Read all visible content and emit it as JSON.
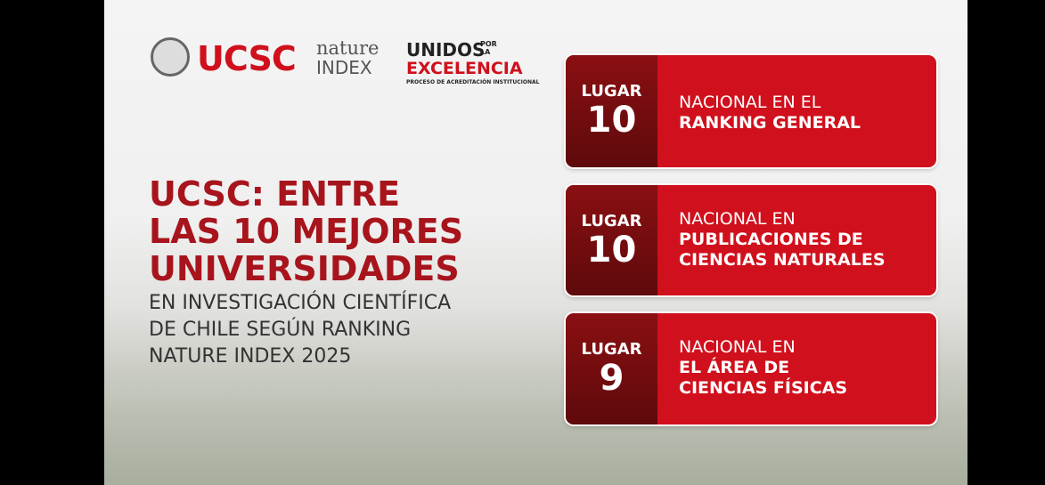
{
  "logos": {
    "ucsc": "UCSC",
    "nature": "nature",
    "index": "INDEX",
    "unidos": "UNIDOS",
    "por": "POR",
    "la": "LA",
    "excelencia": "EXCELENCIA",
    "proceso": "PROCESO DE ACREDITACIÓN INSTITUCIONAL"
  },
  "headline": {
    "lines": [
      "UCSC: ENTRE",
      "LAS 10 MEJORES",
      "UNIVERSIDADES"
    ],
    "subtitle": [
      "EN INVESTIGACIÓN CIENTÍFICA",
      "DE CHILE SEGÚN RANKING",
      "NATURE INDEX 2025"
    ]
  },
  "cards": [
    {
      "label": "LUGAR",
      "rank": 10,
      "lines": [
        "NACIONAL EN EL",
        "RANKING GENERAL"
      ]
    },
    {
      "label": "LUGAR",
      "rank": 10,
      "lines": [
        "NACIONAL EN",
        "PUBLICACIONES DE",
        "CIENCIAS NATURALES"
      ]
    },
    {
      "label": "LUGAR",
      "rank": 9,
      "lines": [
        "NACIONAL EN",
        "EL ÁREA DE",
        "CIENCIAS FÍSICAS"
      ]
    }
  ]
}
